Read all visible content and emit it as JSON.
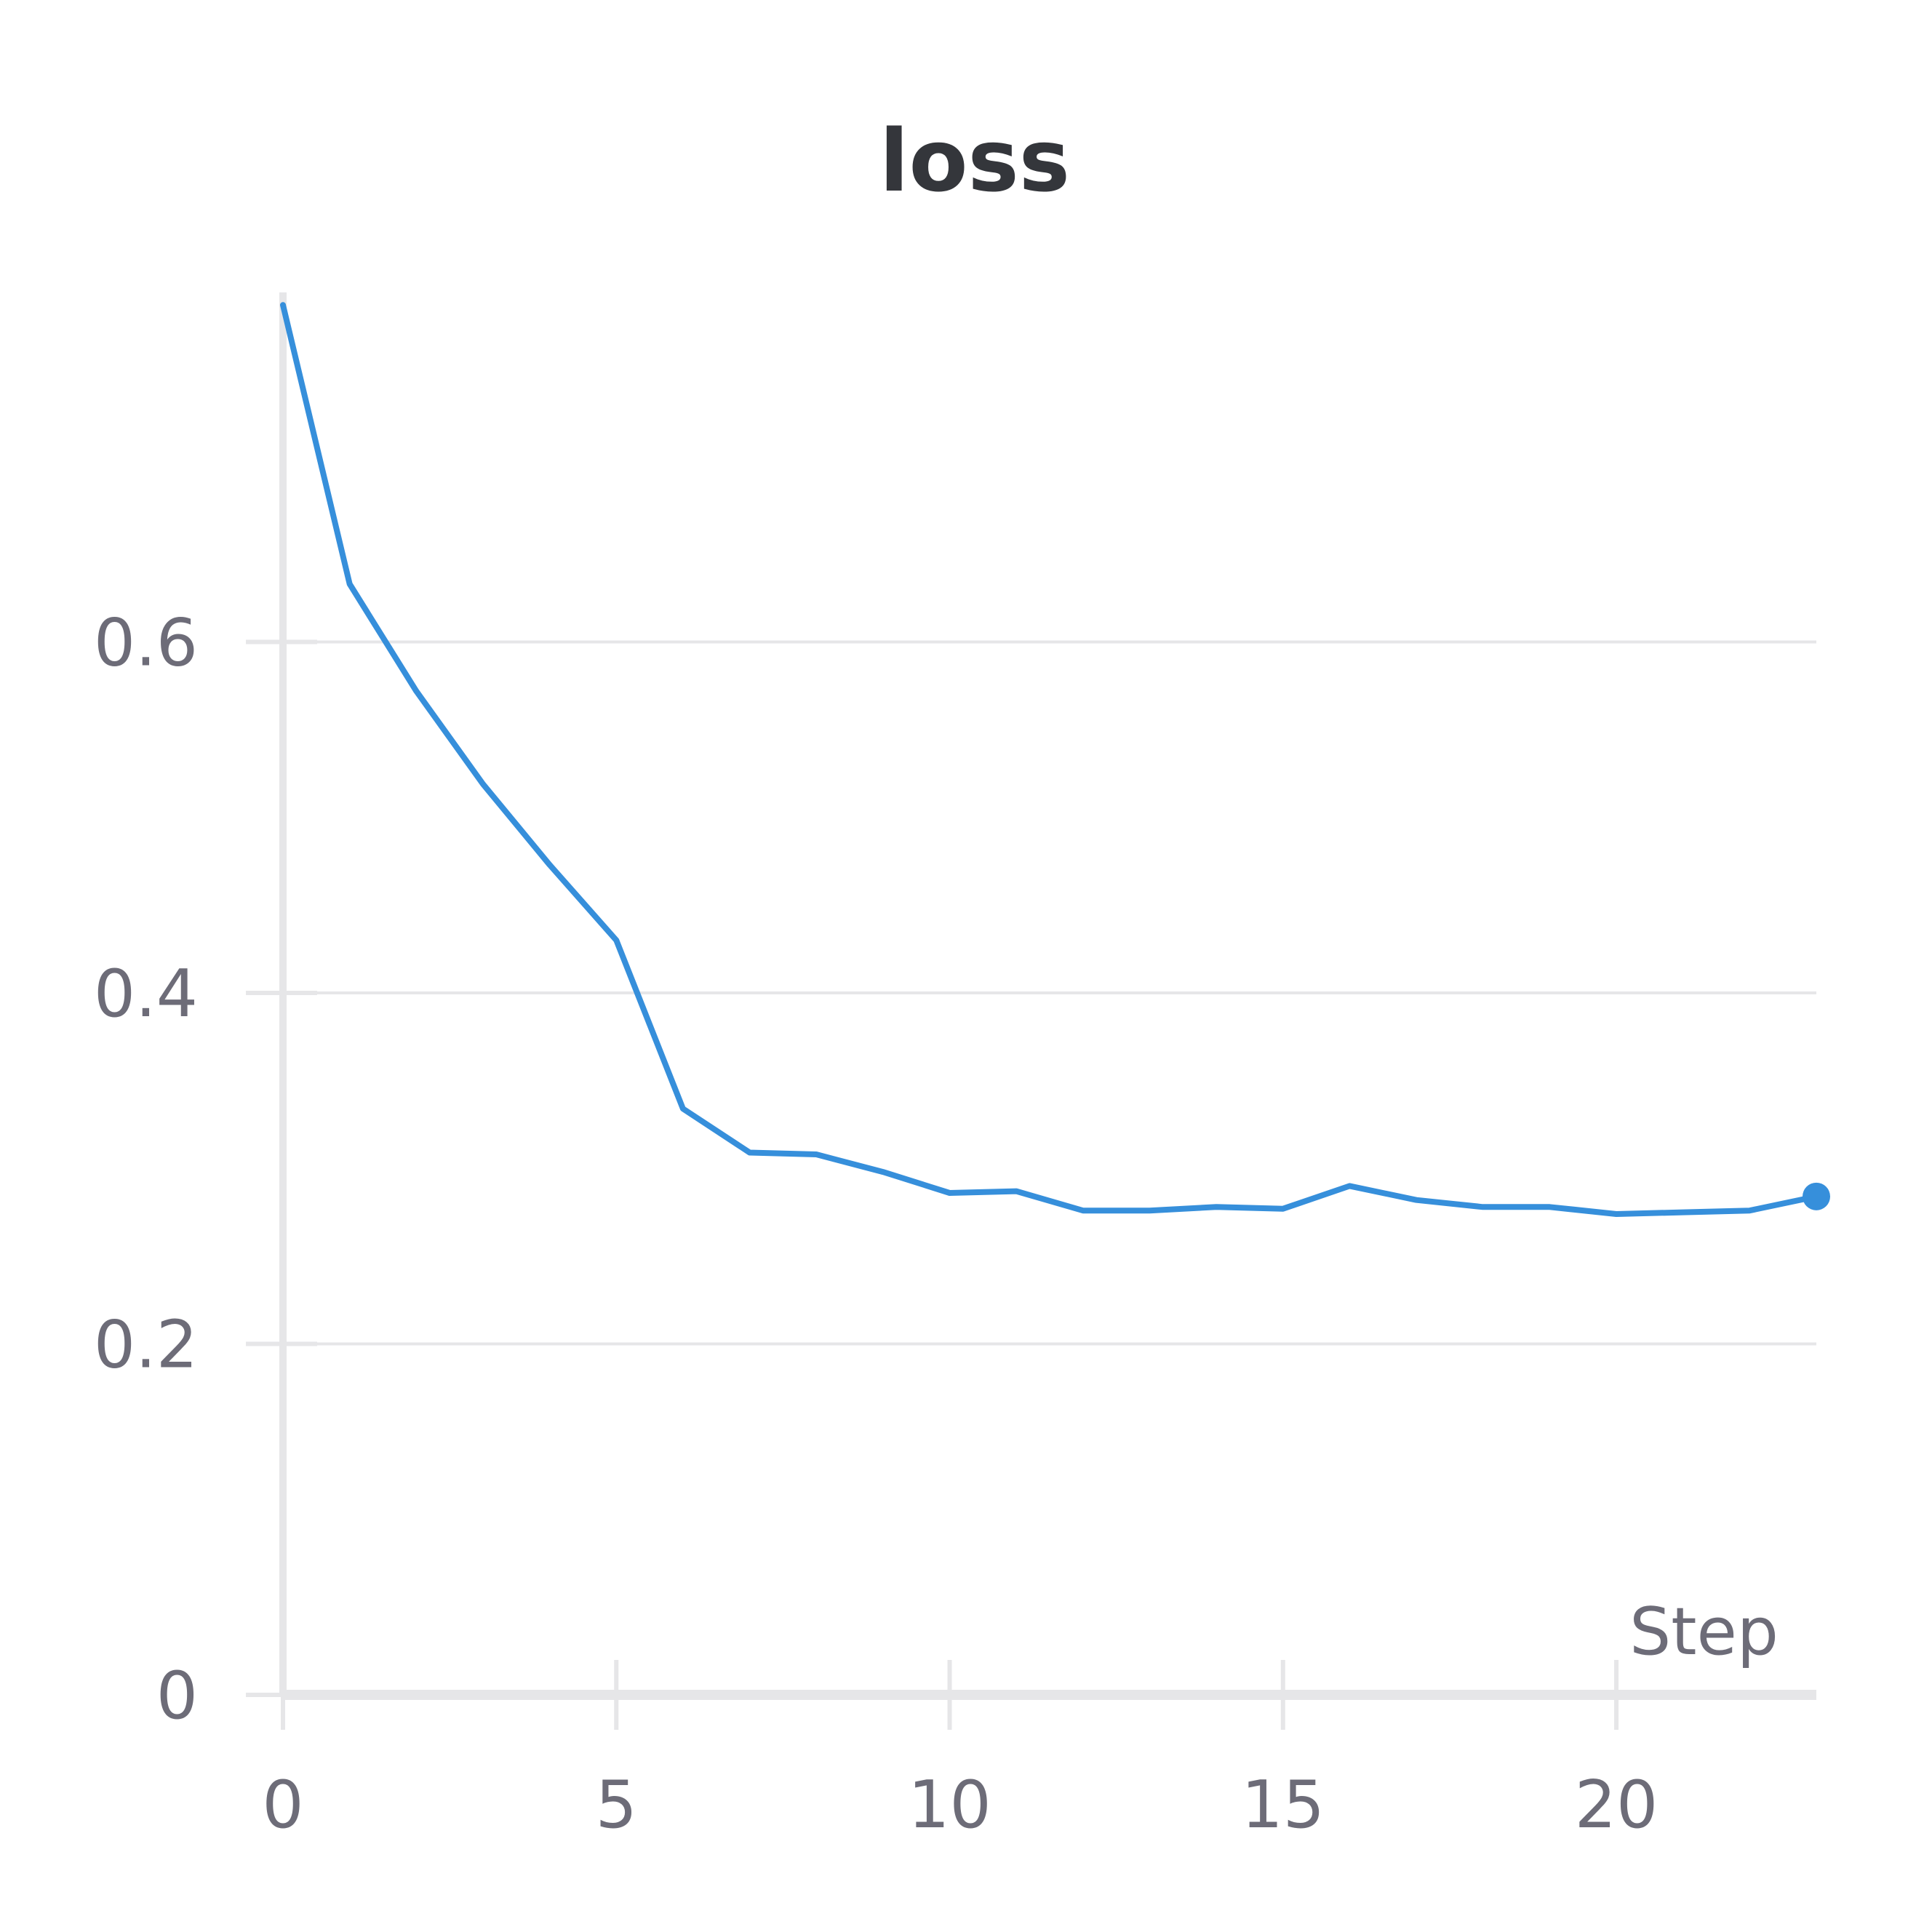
{
  "chart_data": {
    "type": "line",
    "title": "loss",
    "xlabel": "Step",
    "ylabel": "",
    "xlim": [
      0,
      23
    ],
    "ylim": [
      0,
      0.8
    ],
    "grid": true,
    "x_ticks": [
      0,
      5,
      10,
      15,
      20
    ],
    "x_tick_labels": [
      "0",
      "5",
      "10",
      "15",
      "20"
    ],
    "y_ticks": [
      0,
      0.2,
      0.4,
      0.6
    ],
    "y_tick_labels": [
      "0",
      "0.2",
      "0.4",
      "0.6"
    ],
    "series": [
      {
        "color": "#368fdb",
        "x": [
          0,
          1,
          2,
          3,
          4,
          5,
          6,
          7,
          8,
          9,
          10,
          11,
          12,
          13,
          14,
          15,
          16,
          17,
          18,
          19,
          20,
          21,
          22,
          23
        ],
        "y": [
          0.792,
          0.633,
          0.572,
          0.519,
          0.473,
          0.43,
          0.334,
          0.309,
          0.308,
          0.298,
          0.286,
          0.287,
          0.276,
          0.276,
          0.278,
          0.277,
          0.29,
          0.282,
          0.278,
          0.278,
          0.274,
          0.275,
          0.276,
          0.284
        ]
      }
    ]
  }
}
